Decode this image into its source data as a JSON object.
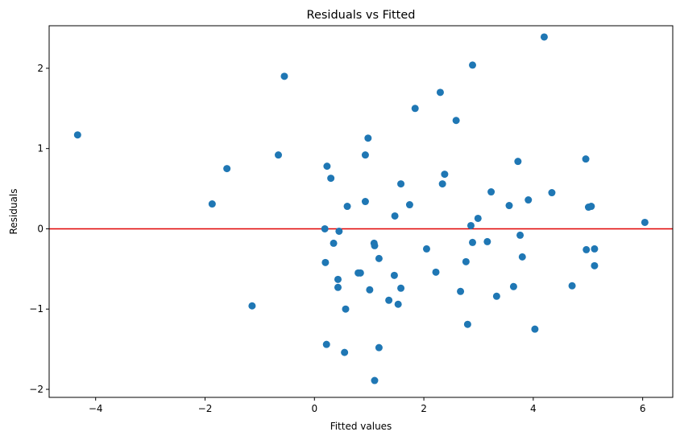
{
  "chart_data": {
    "type": "scatter",
    "title": "Residuals vs Fitted",
    "xlabel": "Fitted values",
    "ylabel": "Residuals",
    "xlim": [
      -4.85,
      6.55
    ],
    "ylim": [
      -2.1,
      2.53
    ],
    "xticks": [
      -4,
      -2,
      0,
      2,
      4,
      6
    ],
    "yticks": [
      -2,
      -1,
      0,
      1,
      2
    ],
    "grid": false,
    "reference_line": {
      "y": 0,
      "color": "#e00000"
    },
    "point_color": "#1f77b4",
    "points": [
      [
        -4.33,
        1.17
      ],
      [
        -1.87,
        0.31
      ],
      [
        -1.6,
        0.75
      ],
      [
        -1.14,
        -0.96
      ],
      [
        -0.66,
        0.92
      ],
      [
        -0.55,
        1.9
      ],
      [
        0.19,
        0.0
      ],
      [
        0.2,
        -0.42
      ],
      [
        0.22,
        -1.44
      ],
      [
        0.23,
        0.78
      ],
      [
        0.3,
        0.63
      ],
      [
        0.35,
        -0.18
      ],
      [
        0.43,
        -0.63
      ],
      [
        0.43,
        -0.73
      ],
      [
        0.45,
        -0.03
      ],
      [
        0.55,
        -1.54
      ],
      [
        0.57,
        -1.0
      ],
      [
        0.6,
        0.28
      ],
      [
        0.8,
        -0.55
      ],
      [
        0.84,
        -0.55
      ],
      [
        0.93,
        0.34
      ],
      [
        0.93,
        0.92
      ],
      [
        0.98,
        1.13
      ],
      [
        1.01,
        -0.76
      ],
      [
        1.09,
        -0.18
      ],
      [
        1.1,
        -0.21
      ],
      [
        1.1,
        -1.89
      ],
      [
        1.18,
        -1.48
      ],
      [
        1.18,
        -0.37
      ],
      [
        1.36,
        -0.89
      ],
      [
        1.46,
        -0.58
      ],
      [
        1.47,
        0.16
      ],
      [
        1.53,
        -0.94
      ],
      [
        1.58,
        -0.74
      ],
      [
        1.58,
        0.56
      ],
      [
        1.74,
        0.3
      ],
      [
        1.84,
        1.5
      ],
      [
        2.05,
        -0.25
      ],
      [
        2.22,
        -0.54
      ],
      [
        2.3,
        1.7
      ],
      [
        2.34,
        0.56
      ],
      [
        2.38,
        0.68
      ],
      [
        2.59,
        1.35
      ],
      [
        2.67,
        -0.78
      ],
      [
        2.77,
        -0.41
      ],
      [
        2.8,
        -1.19
      ],
      [
        2.86,
        0.04
      ],
      [
        2.89,
        -0.17
      ],
      [
        2.89,
        2.04
      ],
      [
        2.99,
        0.13
      ],
      [
        3.16,
        -0.16
      ],
      [
        3.23,
        0.46
      ],
      [
        3.33,
        -0.84
      ],
      [
        3.56,
        0.29
      ],
      [
        3.64,
        -0.72
      ],
      [
        3.72,
        0.84
      ],
      [
        3.76,
        -0.08
      ],
      [
        3.8,
        -0.35
      ],
      [
        3.91,
        0.36
      ],
      [
        4.03,
        -1.25
      ],
      [
        4.2,
        2.39
      ],
      [
        4.34,
        0.45
      ],
      [
        4.71,
        -0.71
      ],
      [
        4.96,
        0.87
      ],
      [
        4.97,
        -0.26
      ],
      [
        5.01,
        0.27
      ],
      [
        5.06,
        0.28
      ],
      [
        5.12,
        -0.25
      ],
      [
        5.12,
        -0.46
      ],
      [
        6.04,
        0.08
      ]
    ]
  }
}
